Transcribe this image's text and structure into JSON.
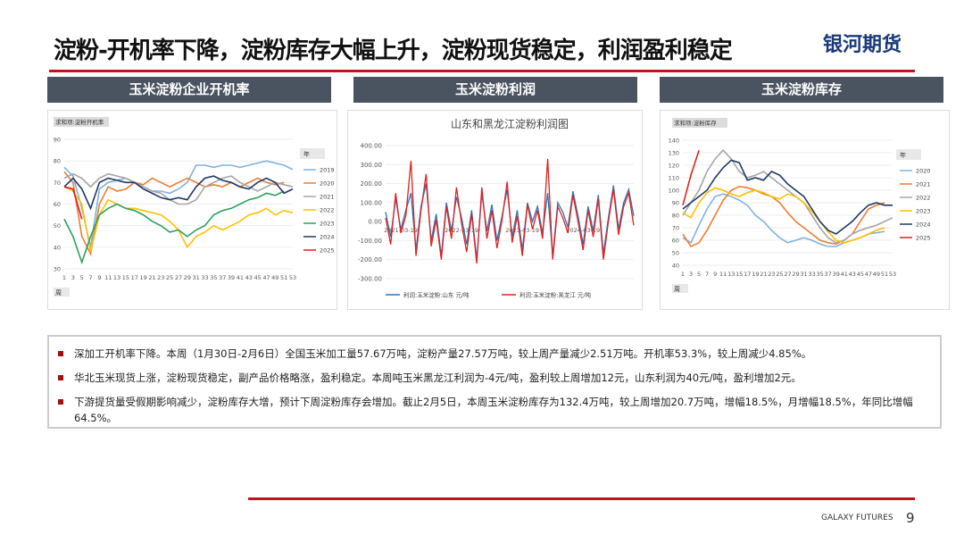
{
  "header": {
    "title": "淀粉-开机率下降，淀粉库存大幅上升，淀粉现货稳定，利润盈利稳定",
    "logo": "银河期货"
  },
  "panels": [
    "玉米淀粉企业开机率",
    "玉米淀粉利润",
    "玉米淀粉库存"
  ],
  "chart_data": [
    {
      "type": "line",
      "tag": "求和项:淀粉开机率",
      "legend_title": "年",
      "x_field": "周",
      "legend": "right",
      "categories": [
        1,
        3,
        5,
        7,
        9,
        11,
        13,
        15,
        17,
        19,
        21,
        23,
        25,
        27,
        29,
        31,
        33,
        35,
        37,
        39,
        41,
        43,
        45,
        47,
        49,
        51,
        53
      ],
      "ylim": [
        30,
        90
      ],
      "yticks": [
        30,
        40,
        50,
        60,
        70,
        80,
        90
      ],
      "series": [
        {
          "name": "2019",
          "color": "#7fb2e0",
          "values": [
            77,
            73,
            58,
            40,
            67,
            70,
            71,
            72,
            70,
            68,
            66,
            66,
            65,
            67,
            70,
            78,
            78,
            77,
            78,
            78,
            77,
            78,
            79,
            80,
            79,
            78,
            76
          ]
        },
        {
          "name": "2020",
          "color": "#ed7d31",
          "values": [
            75,
            70,
            45,
            37,
            60,
            68,
            66,
            67,
            70,
            69,
            72,
            70,
            68,
            70,
            72,
            70,
            68,
            69,
            68,
            70,
            68,
            70,
            72,
            70,
            69,
            70,
            null
          ]
        },
        {
          "name": "2021",
          "color": "#a5a5a5",
          "values": [
            72,
            74,
            72,
            68,
            72,
            74,
            73,
            72,
            70,
            68,
            66,
            65,
            62,
            60,
            60,
            62,
            68,
            70,
            72,
            73,
            70,
            68,
            66,
            68,
            70,
            69,
            68
          ]
        },
        {
          "name": "2022",
          "color": "#ffc000",
          "values": [
            68,
            66,
            60,
            38,
            55,
            62,
            60,
            58,
            58,
            57,
            56,
            55,
            52,
            48,
            40,
            45,
            47,
            50,
            48,
            50,
            52,
            55,
            56,
            58,
            55,
            57,
            56
          ]
        },
        {
          "name": "2023",
          "color": "#2ca05a",
          "values": [
            53,
            45,
            33,
            45,
            55,
            58,
            60,
            58,
            57,
            55,
            52,
            50,
            47,
            48,
            45,
            48,
            50,
            55,
            57,
            58,
            60,
            62,
            63,
            65,
            64,
            66,
            null
          ]
        },
        {
          "name": "2024",
          "color": "#1f3864",
          "values": [
            68,
            72,
            67,
            58,
            70,
            72,
            71,
            70,
            70,
            67,
            65,
            63,
            62,
            63,
            62,
            68,
            72,
            73,
            71,
            70,
            68,
            67,
            70,
            72,
            70,
            65,
            67
          ]
        },
        {
          "name": "2025",
          "color": "#e02020",
          "values": [
            68,
            67,
            53,
            null,
            null,
            null,
            null,
            null,
            null,
            null,
            null,
            null,
            null,
            null,
            null,
            null,
            null,
            null,
            null,
            null,
            null,
            null,
            null,
            null,
            null,
            null,
            null
          ]
        }
      ]
    },
    {
      "type": "line",
      "title": "山东和黑龙江淀粉利润图",
      "legend": "bottom",
      "categories": [
        null,
        null,
        null,
        "2021-03-19",
        null,
        null,
        null,
        null,
        null,
        null,
        null,
        null,
        null,
        null,
        null,
        "2022-03-19",
        null,
        null,
        null,
        null,
        null,
        null,
        null,
        null,
        null,
        null,
        null,
        "2023-03-19",
        null,
        null,
        null,
        null,
        null,
        null,
        null,
        null,
        null,
        null,
        null,
        "2024-03-19",
        null,
        null,
        null,
        null,
        null,
        null,
        null,
        null,
        null,
        null
      ],
      "ylim": [
        -300,
        400
      ],
      "yticks": [
        {
          "value": -300,
          "label": "-300.00"
        },
        {
          "value": -200,
          "label": "-200.00"
        },
        {
          "value": -100,
          "label": "-100.00"
        },
        {
          "value": 0,
          "label": "0.00"
        },
        {
          "value": 100,
          "label": "100.00"
        },
        {
          "value": 200,
          "label": "200.00"
        },
        {
          "value": 300,
          "label": "300.00"
        },
        {
          "value": 400,
          "label": "400.00"
        }
      ],
      "series": [
        {
          "name": "利润:玉米淀粉:山东 元/吨",
          "color": "#2e75b6",
          "values": [
            50,
            -80,
            120,
            -40,
            60,
            150,
            -150,
            80,
            200,
            -100,
            40,
            -180,
            100,
            -50,
            130,
            20,
            -120,
            60,
            -200,
            150,
            -50,
            90,
            -100,
            30,
            170,
            -80,
            60,
            -150,
            100,
            0,
            80,
            -60,
            150,
            -180,
            100,
            50,
            -30,
            160,
            30,
            -120,
            80,
            -50,
            140,
            -170,
            20,
            190,
            -40,
            100,
            170,
            30
          ]
        },
        {
          "name": "利润:玉米淀粉:黑龙江 元/吨",
          "color": "#e02020",
          "values": [
            20,
            -120,
            150,
            -60,
            30,
            320,
            -180,
            60,
            250,
            -130,
            10,
            -200,
            80,
            -90,
            180,
            -10,
            -160,
            40,
            -220,
            180,
            -90,
            60,
            -140,
            10,
            210,
            -110,
            30,
            -180,
            90,
            -40,
            60,
            -90,
            330,
            -200,
            80,
            20,
            -60,
            140,
            0,
            -150,
            60,
            -80,
            120,
            -200,
            0,
            170,
            -70,
            80,
            150,
            -20
          ]
        }
      ]
    },
    {
      "type": "line",
      "tag": "求和项:淀粉库存",
      "legend_title": "年",
      "x_field": "周",
      "legend": "right",
      "categories": [
        1,
        3,
        5,
        7,
        9,
        11,
        13,
        15,
        17,
        19,
        21,
        23,
        25,
        27,
        29,
        31,
        33,
        35,
        37,
        39,
        41,
        43,
        45,
        47,
        49,
        51,
        53
      ],
      "ylim": [
        40,
        140
      ],
      "yticks": [
        40,
        50,
        60,
        70,
        80,
        90,
        100,
        110,
        120,
        130,
        140
      ],
      "series": [
        {
          "name": "2020",
          "color": "#7fb2e0",
          "values": [
            62,
            58,
            72,
            85,
            95,
            97,
            95,
            92,
            88,
            80,
            75,
            68,
            62,
            58,
            60,
            62,
            60,
            57,
            55,
            55,
            58,
            60,
            62,
            65,
            66,
            67,
            null
          ]
        },
        {
          "name": "2021",
          "color": "#ed7d31",
          "values": [
            65,
            55,
            58,
            68,
            80,
            92,
            100,
            103,
            102,
            100,
            97,
            95,
            90,
            82,
            75,
            70,
            65,
            60,
            58,
            57,
            60,
            65,
            75,
            85,
            88,
            90,
            null
          ]
        },
        {
          "name": "2022",
          "color": "#a5a5a5",
          "values": [
            80,
            90,
            100,
            115,
            125,
            132,
            125,
            115,
            110,
            112,
            115,
            110,
            105,
            100,
            95,
            90,
            80,
            70,
            62,
            58,
            60,
            65,
            68,
            70,
            72,
            75,
            78
          ]
        },
        {
          "name": "2023",
          "color": "#ffc000",
          "values": [
            82,
            78,
            90,
            98,
            102,
            100,
            97,
            95,
            98,
            100,
            98,
            95,
            93,
            97,
            95,
            90,
            83,
            75,
            67,
            60,
            58,
            60,
            62,
            65,
            68,
            70,
            null
          ]
        },
        {
          "name": "2024",
          "color": "#1f3864",
          "values": [
            85,
            90,
            95,
            100,
            110,
            118,
            124,
            122,
            108,
            110,
            108,
            115,
            112,
            105,
            100,
            95,
            85,
            75,
            68,
            65,
            70,
            75,
            82,
            88,
            90,
            88,
            88
          ]
        },
        {
          "name": "2025",
          "color": "#e02020",
          "values": [
            88,
            112,
            132,
            null,
            null,
            null,
            null,
            null,
            null,
            null,
            null,
            null,
            null,
            null,
            null,
            null,
            null,
            null,
            null,
            null,
            null,
            null,
            null,
            null,
            null,
            null,
            null
          ]
        }
      ]
    }
  ],
  "bullets": [
    "深加工开机率下降。本周（1月30日-2月6日）全国玉米加工量57.67万吨，淀粉产量27.57万吨，较上周产量减少2.51万吨。开机率53.3%，较上周减少4.85%。",
    "华北玉米现货上涨，淀粉现货稳定，副产品价格略涨，盈利稳定。本周吨玉米黑龙江利润为-4元/吨，盈利较上周增加12元，山东利润为40元/吨，盈利增加2元。",
    "下游提货量受假期影响减少，淀粉库存大增，预计下周淀粉库存会增加。截止2月5日，本周玉米淀粉库存为132.4万吨，较上周增加20.7万吨，增幅18.5%，月增幅18.5%，年同比增幅64.5%。"
  ],
  "footer": {
    "brand": "GALAXY FUTURES",
    "page": "9"
  }
}
